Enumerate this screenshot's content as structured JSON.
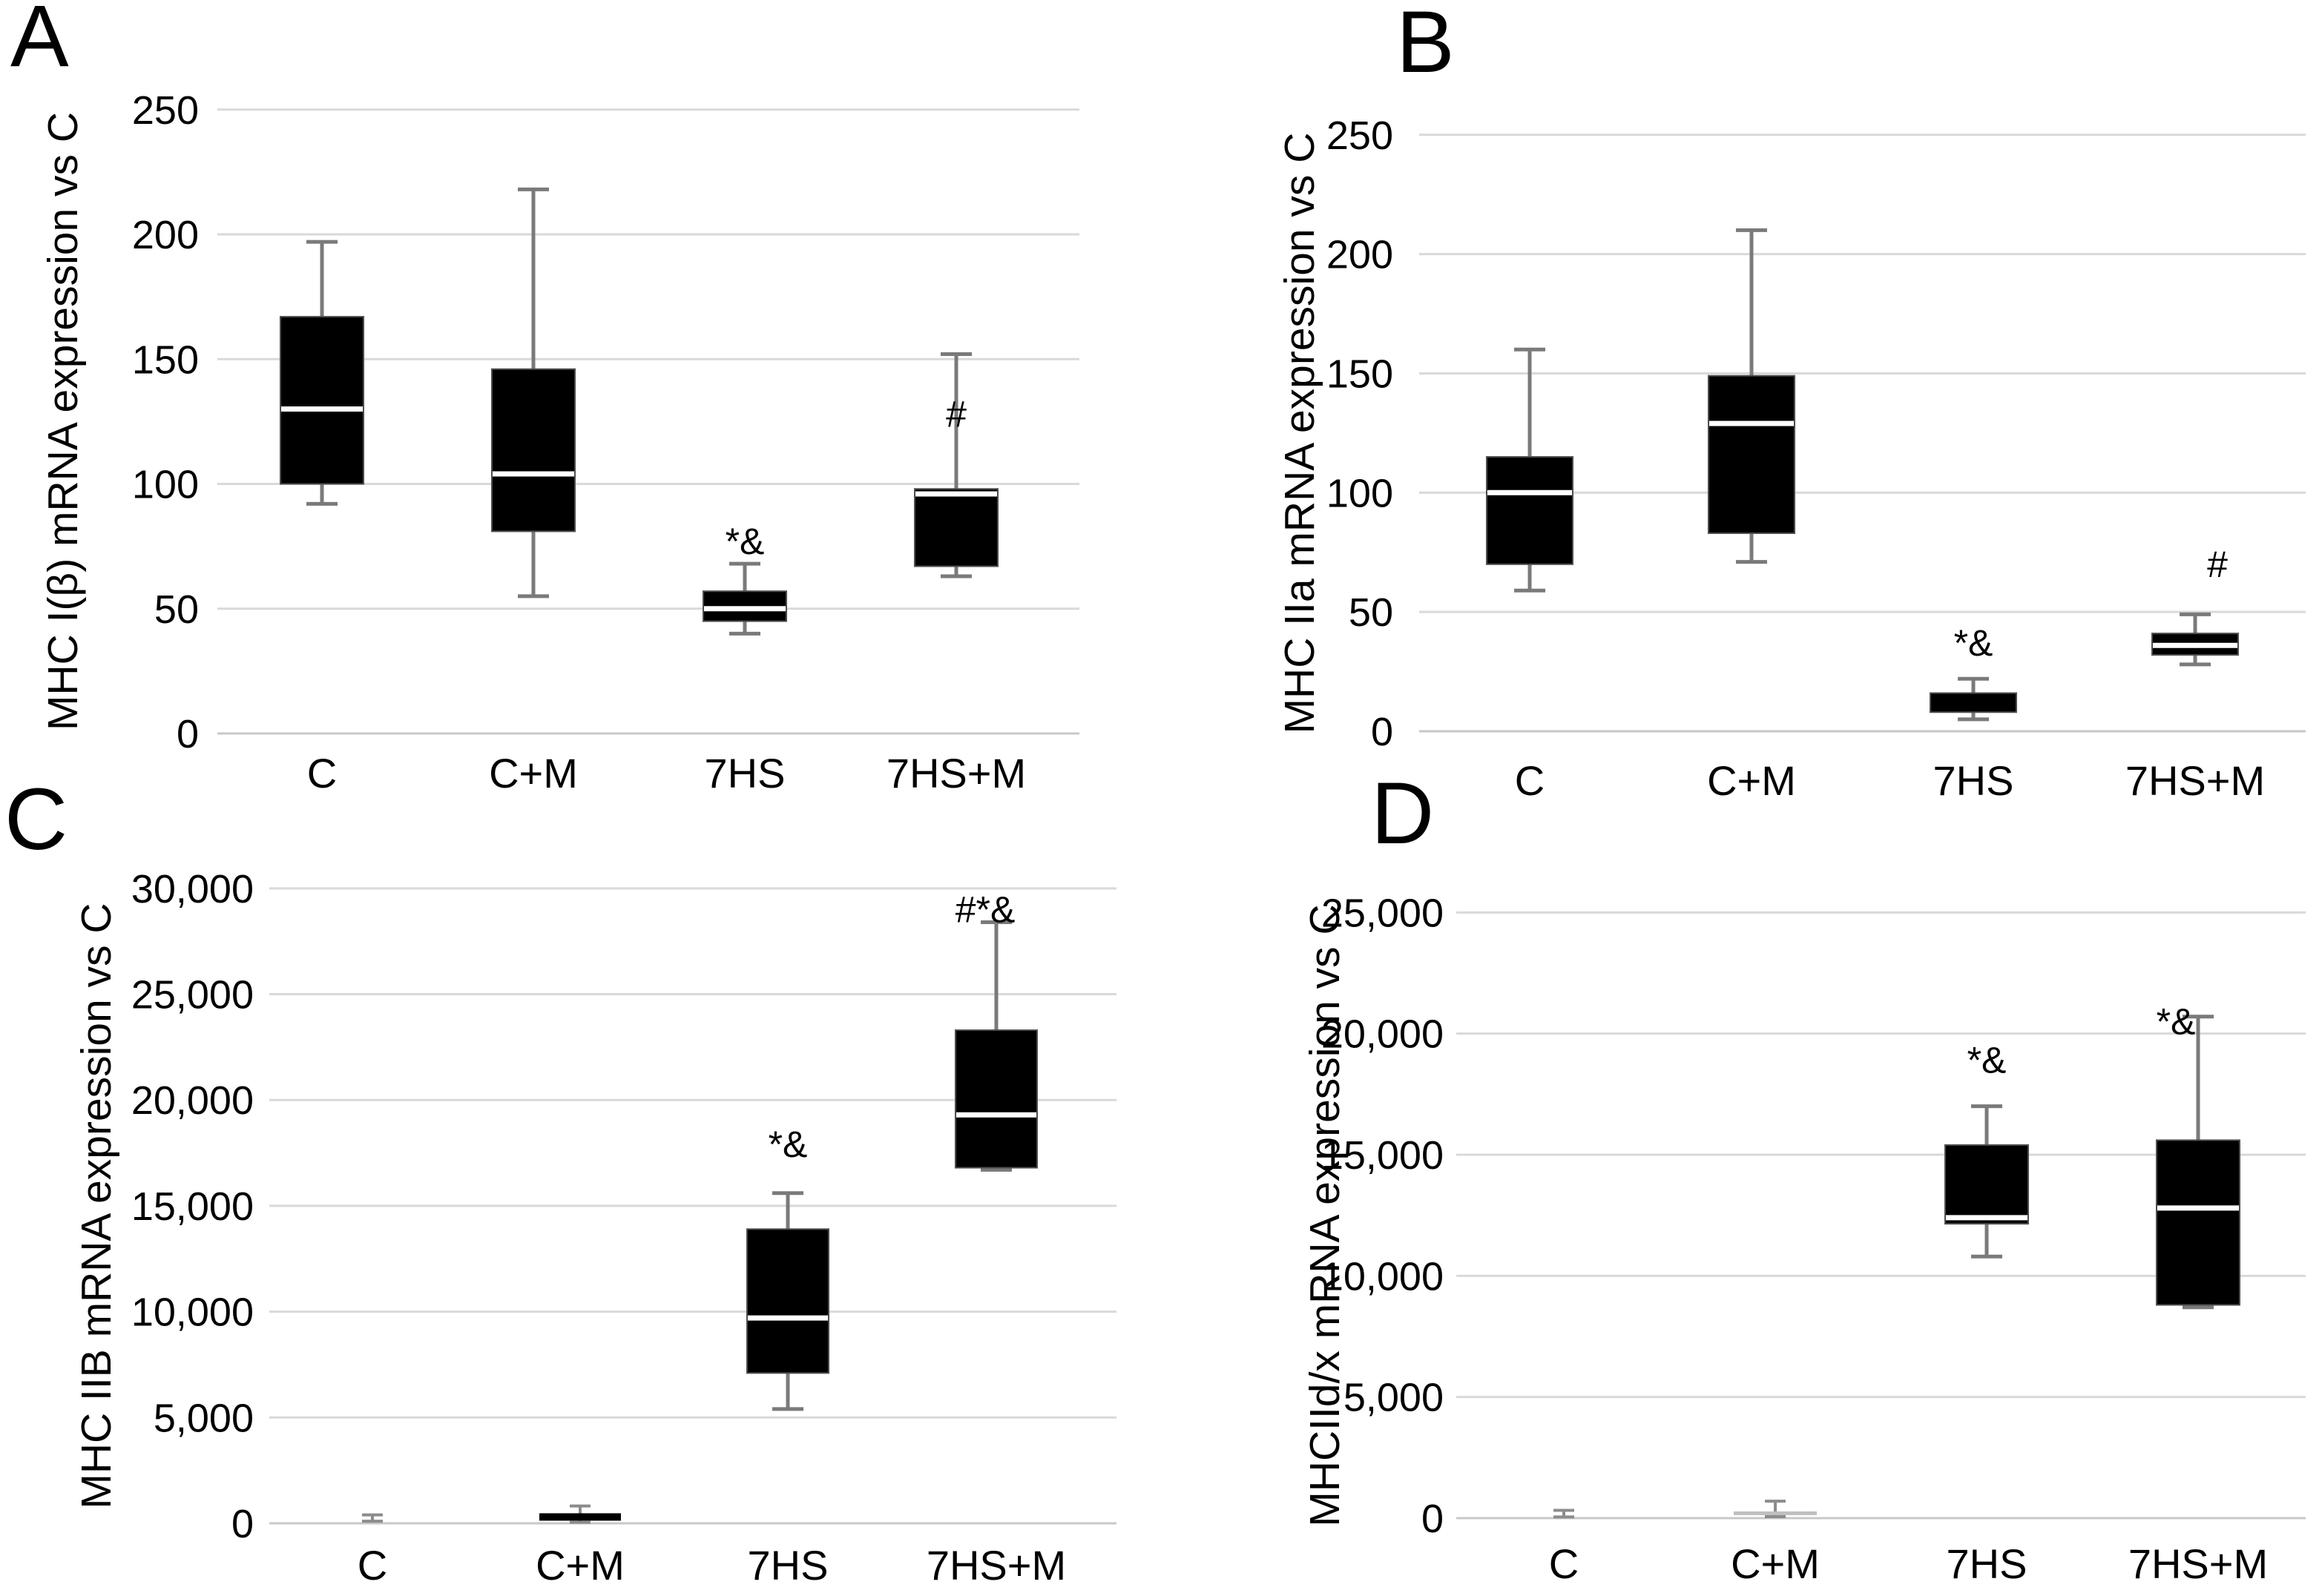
{
  "figure_title": "",
  "colors": {
    "box_fill": "#000000",
    "box_stroke": "#4d4d4d",
    "median_line": "#ffffff",
    "whisker": "#7a7a7a",
    "small_whisker": "#8c8c8c",
    "gridline": "#d9d9d9",
    "axis_line": "#c8c8c8",
    "text": "#000000",
    "background": "#ffffff",
    "flat_light": "#bfbfbf"
  },
  "chart_data": [
    {
      "type": "box",
      "panel_label": "A",
      "ylabel": "MHC I(β) mRNA expression vs C",
      "ylim": [
        0,
        250
      ],
      "ytick_step": 50,
      "yticks": [
        "0",
        "50",
        "100",
        "150",
        "200",
        "250"
      ],
      "grid": true,
      "legend": "none",
      "categories": [
        "C",
        "C+M",
        "7HS",
        "7HS+M"
      ],
      "boxes": [
        {
          "category": "C",
          "whisker_min": 92,
          "q1": 100,
          "median": 130,
          "q3": 167,
          "whisker_max": 197
        },
        {
          "category": "C+M",
          "whisker_min": 55,
          "q1": 81,
          "median": 104,
          "q3": 146,
          "whisker_max": 218
        },
        {
          "category": "7HS",
          "whisker_min": 40,
          "q1": 45,
          "median": 50,
          "q3": 57,
          "whisker_max": 68,
          "annotation": "*&",
          "annotation_y": 77,
          "annotation_dx": 0
        },
        {
          "category": "7HS+M",
          "whisker_min": 63,
          "q1": 67,
          "median": 96,
          "q3": 98,
          "whisker_max": 152,
          "annotation": "#",
          "annotation_y": 128,
          "annotation_dx": 0
        }
      ]
    },
    {
      "type": "box",
      "panel_label": "B",
      "ylabel": "MHC IIa mRNA expression vs C",
      "ylim": [
        0,
        250
      ],
      "ytick_step": 50,
      "yticks": [
        "0",
        "50",
        "100",
        "150",
        "200",
        "250"
      ],
      "grid": true,
      "legend": "none",
      "categories": [
        "C",
        "C+M",
        "7HS",
        "7HS+M"
      ],
      "boxes": [
        {
          "category": "C",
          "whisker_min": 59,
          "q1": 70,
          "median": 100,
          "q3": 115,
          "whisker_max": 160
        },
        {
          "category": "C+M",
          "whisker_min": 71,
          "q1": 83,
          "median": 129,
          "q3": 149,
          "whisker_max": 210
        },
        {
          "category": "7HS",
          "whisker_min": 5,
          "q1": 8,
          "median": 8,
          "q3": 16,
          "whisker_max": 22,
          "annotation": "*&",
          "annotation_y": 37,
          "annotation_dx": 0
        },
        {
          "category": "7HS+M",
          "whisker_min": 28,
          "q1": 32,
          "median": 36,
          "q3": 41,
          "whisker_max": 49,
          "annotation": "#",
          "annotation_y": 70,
          "annotation_dx": 30
        }
      ]
    },
    {
      "type": "box",
      "panel_label": "C",
      "ylabel": "MHC IIB mRNA expression vs C",
      "ylim": [
        0,
        30000
      ],
      "ytick_step": 5000,
      "yticks": [
        "0",
        "5,000",
        "10,000",
        "15,000",
        "20,000",
        "25,000",
        "30,000"
      ],
      "grid": true,
      "legend": "none",
      "categories": [
        "C",
        "C+M",
        "7HS",
        "7HS+M"
      ],
      "boxes": [
        {
          "category": "C",
          "whisker_only": true,
          "whisker_min": 100,
          "whisker_max": 400
        },
        {
          "category": "C+M",
          "flat_value": 300,
          "whisker_min": 50,
          "whisker_max": 820
        },
        {
          "category": "7HS",
          "whisker_min": 5400,
          "q1": 7100,
          "median": 9700,
          "q3": 13900,
          "whisker_max": 15600,
          "annotation": "*&",
          "annotation_y": 17900,
          "annotation_dx": 0
        },
        {
          "category": "7HS+M",
          "whisker_min": 16700,
          "q1": 16800,
          "median": 19300,
          "q3": 23300,
          "whisker_max": 28400,
          "annotation": "#*&",
          "annotation_y": 29000,
          "annotation_dx": -15
        }
      ]
    },
    {
      "type": "box",
      "panel_label": "D",
      "ylabel": "MHCIId/x mRNA expression vs C",
      "ylim": [
        0,
        25000
      ],
      "ytick_step": 5000,
      "yticks": [
        "0",
        "5,000",
        "10,000",
        "15,000",
        "20,000",
        "25,000"
      ],
      "grid": true,
      "legend": "none",
      "categories": [
        "C",
        "C+M",
        "7HS",
        "7HS+M"
      ],
      "boxes": [
        {
          "category": "C",
          "whisker_only": true,
          "whisker_min": 50,
          "whisker_max": 320
        },
        {
          "category": "C+M",
          "whisker_only": true,
          "whisker_min": 60,
          "whisker_max": 700,
          "flat_value": 200,
          "flat_light": true
        },
        {
          "category": "7HS",
          "whisker_min": 10800,
          "q1": 12150,
          "median": 12400,
          "q3": 15400,
          "whisker_max": 17000,
          "annotation": "*&",
          "annotation_y": 18900,
          "annotation_dx": 0
        },
        {
          "category": "7HS+M",
          "whisker_min": 8700,
          "q1": 8800,
          "median": 12800,
          "q3": 15600,
          "whisker_max": 20700,
          "annotation": "*&",
          "annotation_y": 20500,
          "annotation_dx": -30
        }
      ]
    }
  ]
}
